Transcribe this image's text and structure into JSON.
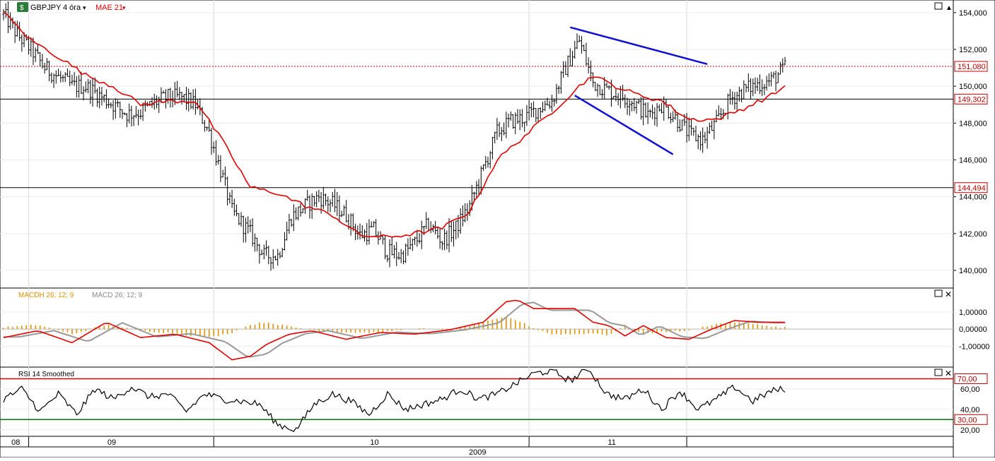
{
  "header": {
    "symbol": "GBPJPY",
    "timeframe": "4 óra",
    "indicator": "MAE 21",
    "macd_label_h": "MACDH 26; 12; 9",
    "macd_label": "MACD 26; 12; 9",
    "rsi_label": "RSI 14 Smoothed"
  },
  "colors": {
    "price_bars": "#000000",
    "mae": "#e00000",
    "trendlines": "#1010d0",
    "macd_hist": "#e09000",
    "macd_line": "#e00000",
    "signal_line": "#999999",
    "rsi_upper": "#d00000",
    "rsi_lower": "#007000",
    "last_price_line": "#c00000"
  },
  "axis": {
    "price_ticks": [
      "154,000",
      "152,000",
      "150,000",
      "148,000",
      "146,000",
      "144,000",
      "142,000",
      "140,000"
    ],
    "macd_ticks": [
      "1,00000",
      "0,00000",
      "-1,00000"
    ],
    "rsi_ticks": [
      "60,00",
      "40,00",
      "20,00"
    ],
    "rsi_levels": [
      "70,00",
      "30,00"
    ],
    "months": [
      "08",
      "09",
      "10",
      "11"
    ],
    "year": "2009"
  },
  "markers": {
    "last_price": "151,080",
    "level_1": "149,302",
    "level_2": "144,494"
  },
  "chart_data": [
    {
      "type": "line",
      "title": "",
      "ylim": [
        139.5,
        154.3
      ],
      "months": [
        "08",
        "09",
        "10",
        "11"
      ],
      "series": [
        {
          "name": "GBPJPY",
          "style": "ohlc",
          "x": [
            0,
            6,
            12,
            18,
            24,
            30,
            36,
            42,
            48,
            54,
            60,
            66,
            72,
            78,
            84,
            90,
            96,
            100,
            108,
            114,
            120,
            126,
            132,
            138,
            144,
            150,
            156,
            162,
            168,
            174,
            180,
            186,
            192,
            198,
            204,
            210,
            216,
            222,
            228,
            234,
            240,
            246,
            252,
            258,
            264,
            270,
            276,
            282,
            288,
            294,
            300,
            306,
            312,
            318,
            324,
            330,
            336,
            342
          ],
          "y": [
            153.9,
            152.8,
            152.0,
            151.0,
            150.5,
            150.0,
            150.0,
            149.5,
            149.0,
            148.5,
            148.6,
            149.1,
            149.4,
            149.4,
            149.0,
            147.5,
            145.0,
            143.2,
            142.0,
            140.8,
            140.8,
            142.9,
            143.5,
            144.0,
            143.6,
            143.0,
            141.9,
            142.2,
            141.0,
            140.8,
            141.5,
            142.5,
            141.6,
            142.3,
            143.5,
            145.5,
            147.5,
            148.1,
            148.3,
            148.8,
            149.2,
            151.0,
            152.5,
            150.2,
            149.8,
            149.5,
            149.1,
            148.4,
            149.0,
            148.3,
            147.4,
            147.1,
            148.0,
            149.3,
            149.8,
            150.1,
            150.3,
            151.0
          ]
        },
        {
          "name": "MAE 21",
          "x": [
            0,
            12,
            24,
            36,
            48,
            60,
            72,
            84,
            96,
            108,
            120,
            132,
            144,
            156,
            168,
            180,
            192,
            204,
            216,
            228,
            240,
            252,
            258,
            264,
            276,
            288,
            300,
            312,
            324,
            336,
            342
          ],
          "y": [
            154.0,
            152.5,
            151.6,
            150.6,
            150.0,
            149.0,
            149.2,
            149.2,
            147.0,
            144.5,
            144.2,
            143.5,
            143.0,
            141.9,
            141.8,
            142.0,
            142.3,
            143.2,
            146.0,
            147.3,
            148.6,
            150.0,
            150.6,
            150.2,
            149.6,
            149.2,
            148.2,
            148.2,
            148.8,
            149.5,
            150.0
          ]
        }
      ],
      "horizontal_lines": [
        151.08,
        149.302,
        144.494
      ],
      "trendlines": [
        [
          [
            248,
            153.2
          ],
          [
            308,
            151.2
          ]
        ],
        [
          [
            250,
            149.5
          ],
          [
            293,
            146.3
          ]
        ]
      ]
    },
    {
      "type": "bar",
      "title": "",
      "ylim": [
        -1.9,
        1.7
      ],
      "series": [
        {
          "name": "MACDH 26; 12; 9",
          "x": [
            0,
            15,
            30,
            45,
            60,
            75,
            90,
            100,
            108,
            115,
            125,
            135,
            150,
            165,
            180,
            195,
            210,
            220,
            225,
            232,
            240,
            250,
            258,
            265,
            272,
            280,
            290,
            300,
            310,
            320,
            330,
            340
          ],
          "y": [
            0.1,
            0.25,
            -0.3,
            0.25,
            -0.1,
            -0.25,
            -0.5,
            -0.2,
            0.25,
            0.4,
            0.15,
            -0.05,
            -0.2,
            -0.2,
            0.05,
            -0.1,
            0.4,
            0.7,
            0.5,
            0.05,
            -0.3,
            -0.3,
            -0.25,
            -0.35,
            0.2,
            -0.3,
            -0.15,
            -0.1,
            0.25,
            0.4,
            0.25,
            0.1
          ]
        },
        {
          "name": "MACD 26; 12; 9",
          "x": [
            0,
            15,
            30,
            45,
            60,
            75,
            90,
            100,
            108,
            115,
            125,
            135,
            150,
            165,
            180,
            195,
            210,
            220,
            225,
            232,
            240,
            250,
            258,
            265,
            272,
            280,
            290,
            300,
            310,
            320,
            330,
            340
          ],
          "y": [
            -0.5,
            -0.1,
            -0.8,
            0.4,
            -0.5,
            -0.3,
            -0.8,
            -1.8,
            -1.6,
            -0.9,
            -0.3,
            -0.1,
            -0.6,
            -0.2,
            -0.3,
            -0.05,
            0.4,
            1.6,
            1.7,
            1.2,
            1.2,
            1.2,
            0.4,
            0.2,
            -0.4,
            0.2,
            -0.5,
            -0.6,
            0.0,
            0.5,
            0.4,
            0.4
          ]
        }
      ]
    },
    {
      "type": "line",
      "title": "",
      "ylim": [
        15,
        80
      ],
      "levels": [
        70,
        30
      ],
      "series": [
        {
          "name": "RSI 14 Smoothed",
          "x": [
            0,
            8,
            16,
            24,
            32,
            40,
            48,
            56,
            64,
            72,
            80,
            88,
            96,
            104,
            112,
            120,
            128,
            136,
            144,
            152,
            160,
            168,
            176,
            184,
            192,
            200,
            208,
            216,
            224,
            232,
            240,
            248,
            256,
            264,
            272,
            280,
            288,
            296,
            304,
            312,
            320,
            328,
            336,
            342
          ],
          "y": [
            50,
            60,
            38,
            55,
            35,
            60,
            50,
            62,
            52,
            55,
            38,
            55,
            50,
            48,
            45,
            25,
            20,
            45,
            55,
            48,
            35,
            55,
            40,
            45,
            50,
            60,
            50,
            55,
            65,
            75,
            78,
            68,
            80,
            55,
            50,
            60,
            40,
            58,
            40,
            50,
            62,
            48,
            58,
            60
          ]
        }
      ]
    }
  ]
}
